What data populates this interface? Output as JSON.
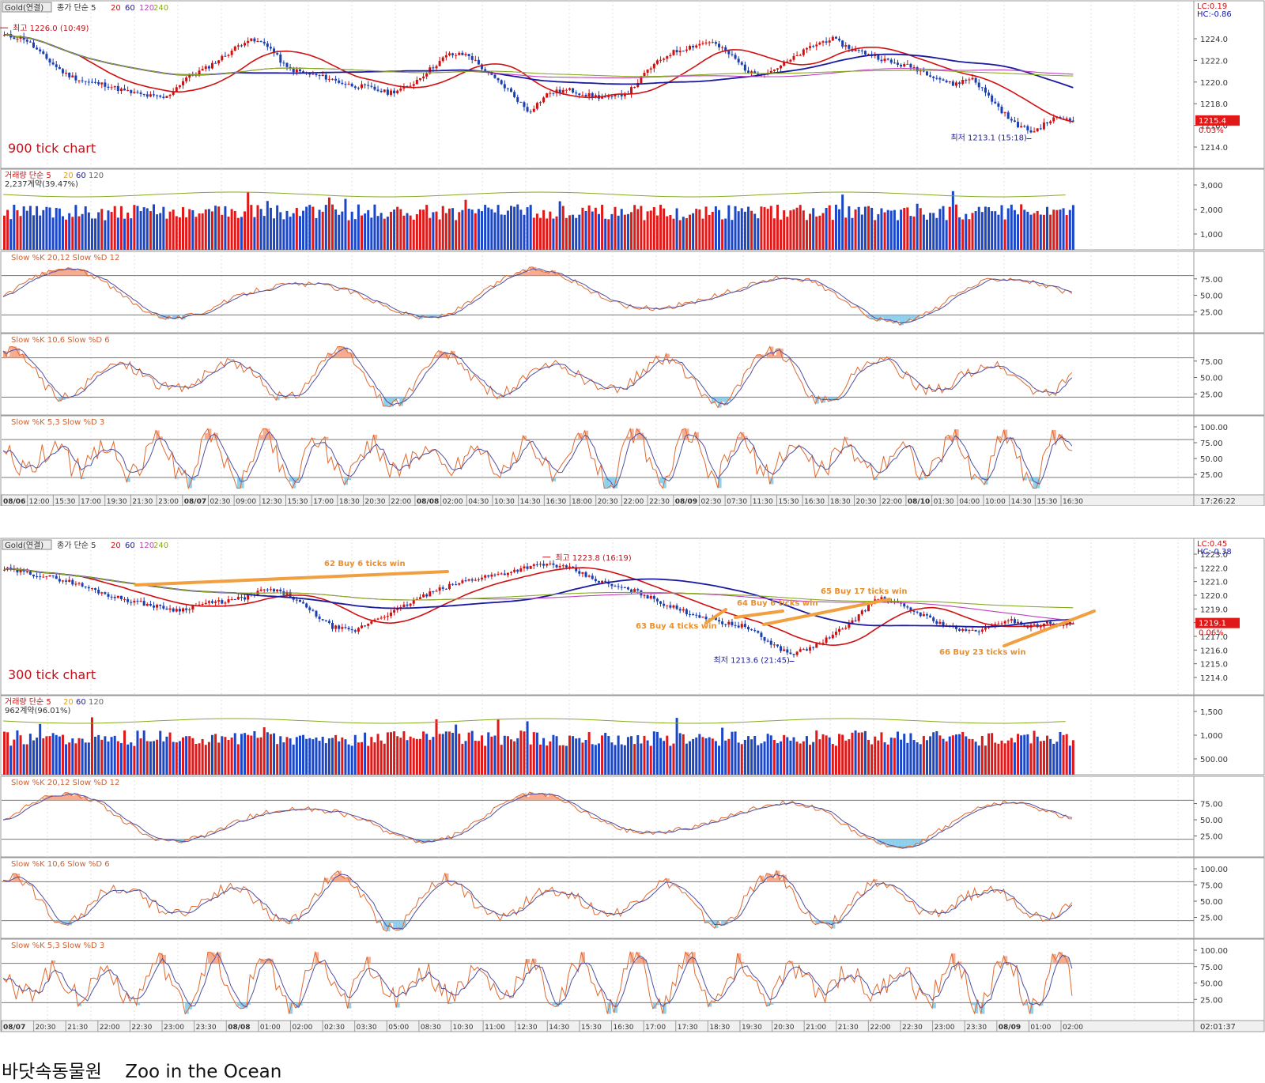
{
  "caption": "바닷속동물원    Zoo in the Ocean",
  "charts": [
    {
      "id": "top",
      "symbol": "Gold(연결)",
      "ma_header": [
        "종가 단순 5",
        "20",
        "60",
        "120",
        "240"
      ],
      "ma_colors": [
        "#d01010",
        "#d01010",
        "#1a1aa0",
        "#c040c0",
        "#88aa22"
      ],
      "corner_labels": [
        "LC:0.19",
        "HC:-0.86"
      ],
      "chart_label": "900 tick chart",
      "high_label": "최고 1226.0 (10:49)",
      "low_label": "최저 1213.1 (15:18)",
      "current_price": "1215.4",
      "current_pct": "0.03%",
      "price_ticks": [
        "1224.0",
        "1222.0",
        "1220.0",
        "1218.0",
        "1216.0",
        "1214.0"
      ],
      "volume_header": [
        "거래량 단순 5",
        "20",
        "60",
        "120"
      ],
      "volume_info": "2,237계약(39.47%)",
      "volume_ticks": [
        "3,000",
        "2,000",
        "1,000"
      ],
      "stoch": [
        {
          "label": "Slow %K 20,12  Slow %D 12",
          "ticks": [
            "75.00",
            "50.00",
            "25.00"
          ]
        },
        {
          "label": "Slow %K 10,6  Slow %D 6",
          "ticks": [
            "75.00",
            "50.00",
            "25.00"
          ]
        },
        {
          "label": "Slow %K 5,3  Slow %D 3",
          "ticks": [
            "100.00",
            "75.00",
            "50.00",
            "25.00"
          ]
        }
      ],
      "time_axis": [
        "08/06",
        "12:00",
        "15:30",
        "17:00",
        "19:30",
        "21:30",
        "23:00",
        "08/07",
        "02:30",
        "09:00",
        "12:30",
        "15:30",
        "17:00",
        "18:30",
        "20:30",
        "22:00",
        "08/08",
        "02:00",
        "04:30",
        "10:30",
        "14:30",
        "16:30",
        "18:00",
        "20:30",
        "22:00",
        "22:30",
        "08/09",
        "02:30",
        "07:30",
        "11:30",
        "15:30",
        "16:30",
        "18:30",
        "20:30",
        "22:00",
        "08/10",
        "01:30",
        "04:00",
        "10:00",
        "14:30",
        "15:30",
        "16:30"
      ],
      "clock": "17:26:22",
      "trades": []
    },
    {
      "id": "bottom",
      "symbol": "Gold(연결)",
      "ma_header": [
        "종가 단순 5",
        "20",
        "60",
        "120",
        "240"
      ],
      "ma_colors": [
        "#d01010",
        "#d01010",
        "#1a1aa0",
        "#c040c0",
        "#88aa22"
      ],
      "corner_labels": [
        "LC:0.45",
        "HC:-0.38"
      ],
      "chart_label": "300 tick chart",
      "high_label": "최고 1223.8 (16:19)",
      "low_label": "최저 1213.6 (21:45)",
      "current_price": "1219.1",
      "current_pct": "0.06%",
      "price_ticks": [
        "1223.0",
        "1222.0",
        "1221.0",
        "1220.0",
        "1219.0",
        "1218.0",
        "1217.0",
        "1216.0",
        "1215.0",
        "1214.0"
      ],
      "volume_header": [
        "거래량 단순 5",
        "20",
        "60",
        "120"
      ],
      "volume_info": "962계약(96.01%)",
      "volume_ticks": [
        "1,500",
        "1,000",
        "500.00"
      ],
      "stoch": [
        {
          "label": "Slow %K 20,12  Slow %D 12",
          "ticks": [
            "75.00",
            "50.00",
            "25.00"
          ]
        },
        {
          "label": "Slow %K 10,6  Slow %D 6",
          "ticks": [
            "100.00",
            "75.00",
            "50.00",
            "25.00"
          ]
        },
        {
          "label": "Slow %K 5,3  Slow %D 3",
          "ticks": [
            "100.00",
            "75.00",
            "50.00",
            "25.00"
          ]
        }
      ],
      "time_axis": [
        "08/07",
        "20:30",
        "21:30",
        "22:00",
        "22:30",
        "23:00",
        "23:30",
        "08/08",
        "01:00",
        "02:00",
        "02:30",
        "03:30",
        "05:00",
        "08:30",
        "10:30",
        "11:00",
        "12:30",
        "14:30",
        "15:30",
        "16:30",
        "17:00",
        "17:30",
        "18:30",
        "19:30",
        "20:30",
        "21:00",
        "21:30",
        "22:00",
        "22:30",
        "23:00",
        "23:30",
        "08/09",
        "01:00",
        "02:00"
      ],
      "clock": "02:01:37",
      "trades": [
        {
          "label": "62 Buy 6 ticks win"
        },
        {
          "label": "63 Buy 4 ticks win"
        },
        {
          "label": "64 Buy 6 ticks win"
        },
        {
          "label": "65 Buy 17 ticks win"
        },
        {
          "label": "66 Buy 23 ticks win"
        }
      ]
    }
  ]
}
